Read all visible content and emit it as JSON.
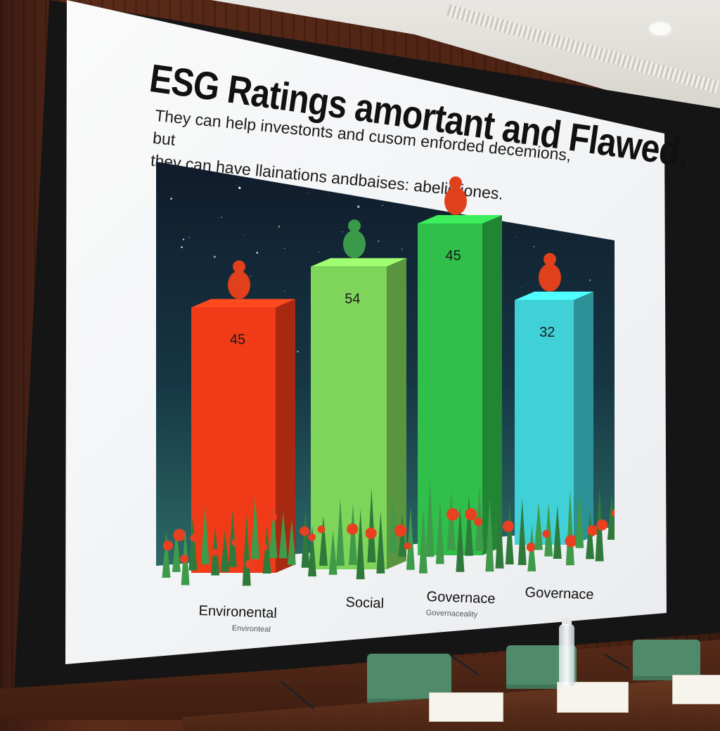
{
  "slide": {
    "title": "ESG Ratings amortant and Flawed.",
    "subtitle_lines": [
      "They can help investonts and cusom enforded decemions, but",
      "they can  have llainations andbaises: abelictiones."
    ]
  },
  "chart_data": {
    "type": "bar",
    "title": "ESG Ratings amortant and Flawed.",
    "subtitle": "They can help investonts and cusom enforded decemions, but they can  have llainations andbaises: abelictiones.",
    "categories": [
      "Environental",
      "Social",
      "Governace",
      "Governace"
    ],
    "category_sublabels": [
      "Environteal",
      "",
      "Governaceality",
      ""
    ],
    "values": [
      45,
      54,
      45,
      32
    ],
    "colors": [
      "#f03a18",
      "#7fd45a",
      "#2fbf4a",
      "#3fd0d8"
    ],
    "bar_heights_relative": [
      0.64,
      0.73,
      0.8,
      0.59
    ],
    "xlabel": "",
    "ylabel": "",
    "grid": false,
    "legend": "none",
    "background": "night-sky with stars and plants"
  },
  "room": {
    "nameplates": [
      "",
      "",
      ""
    ]
  }
}
